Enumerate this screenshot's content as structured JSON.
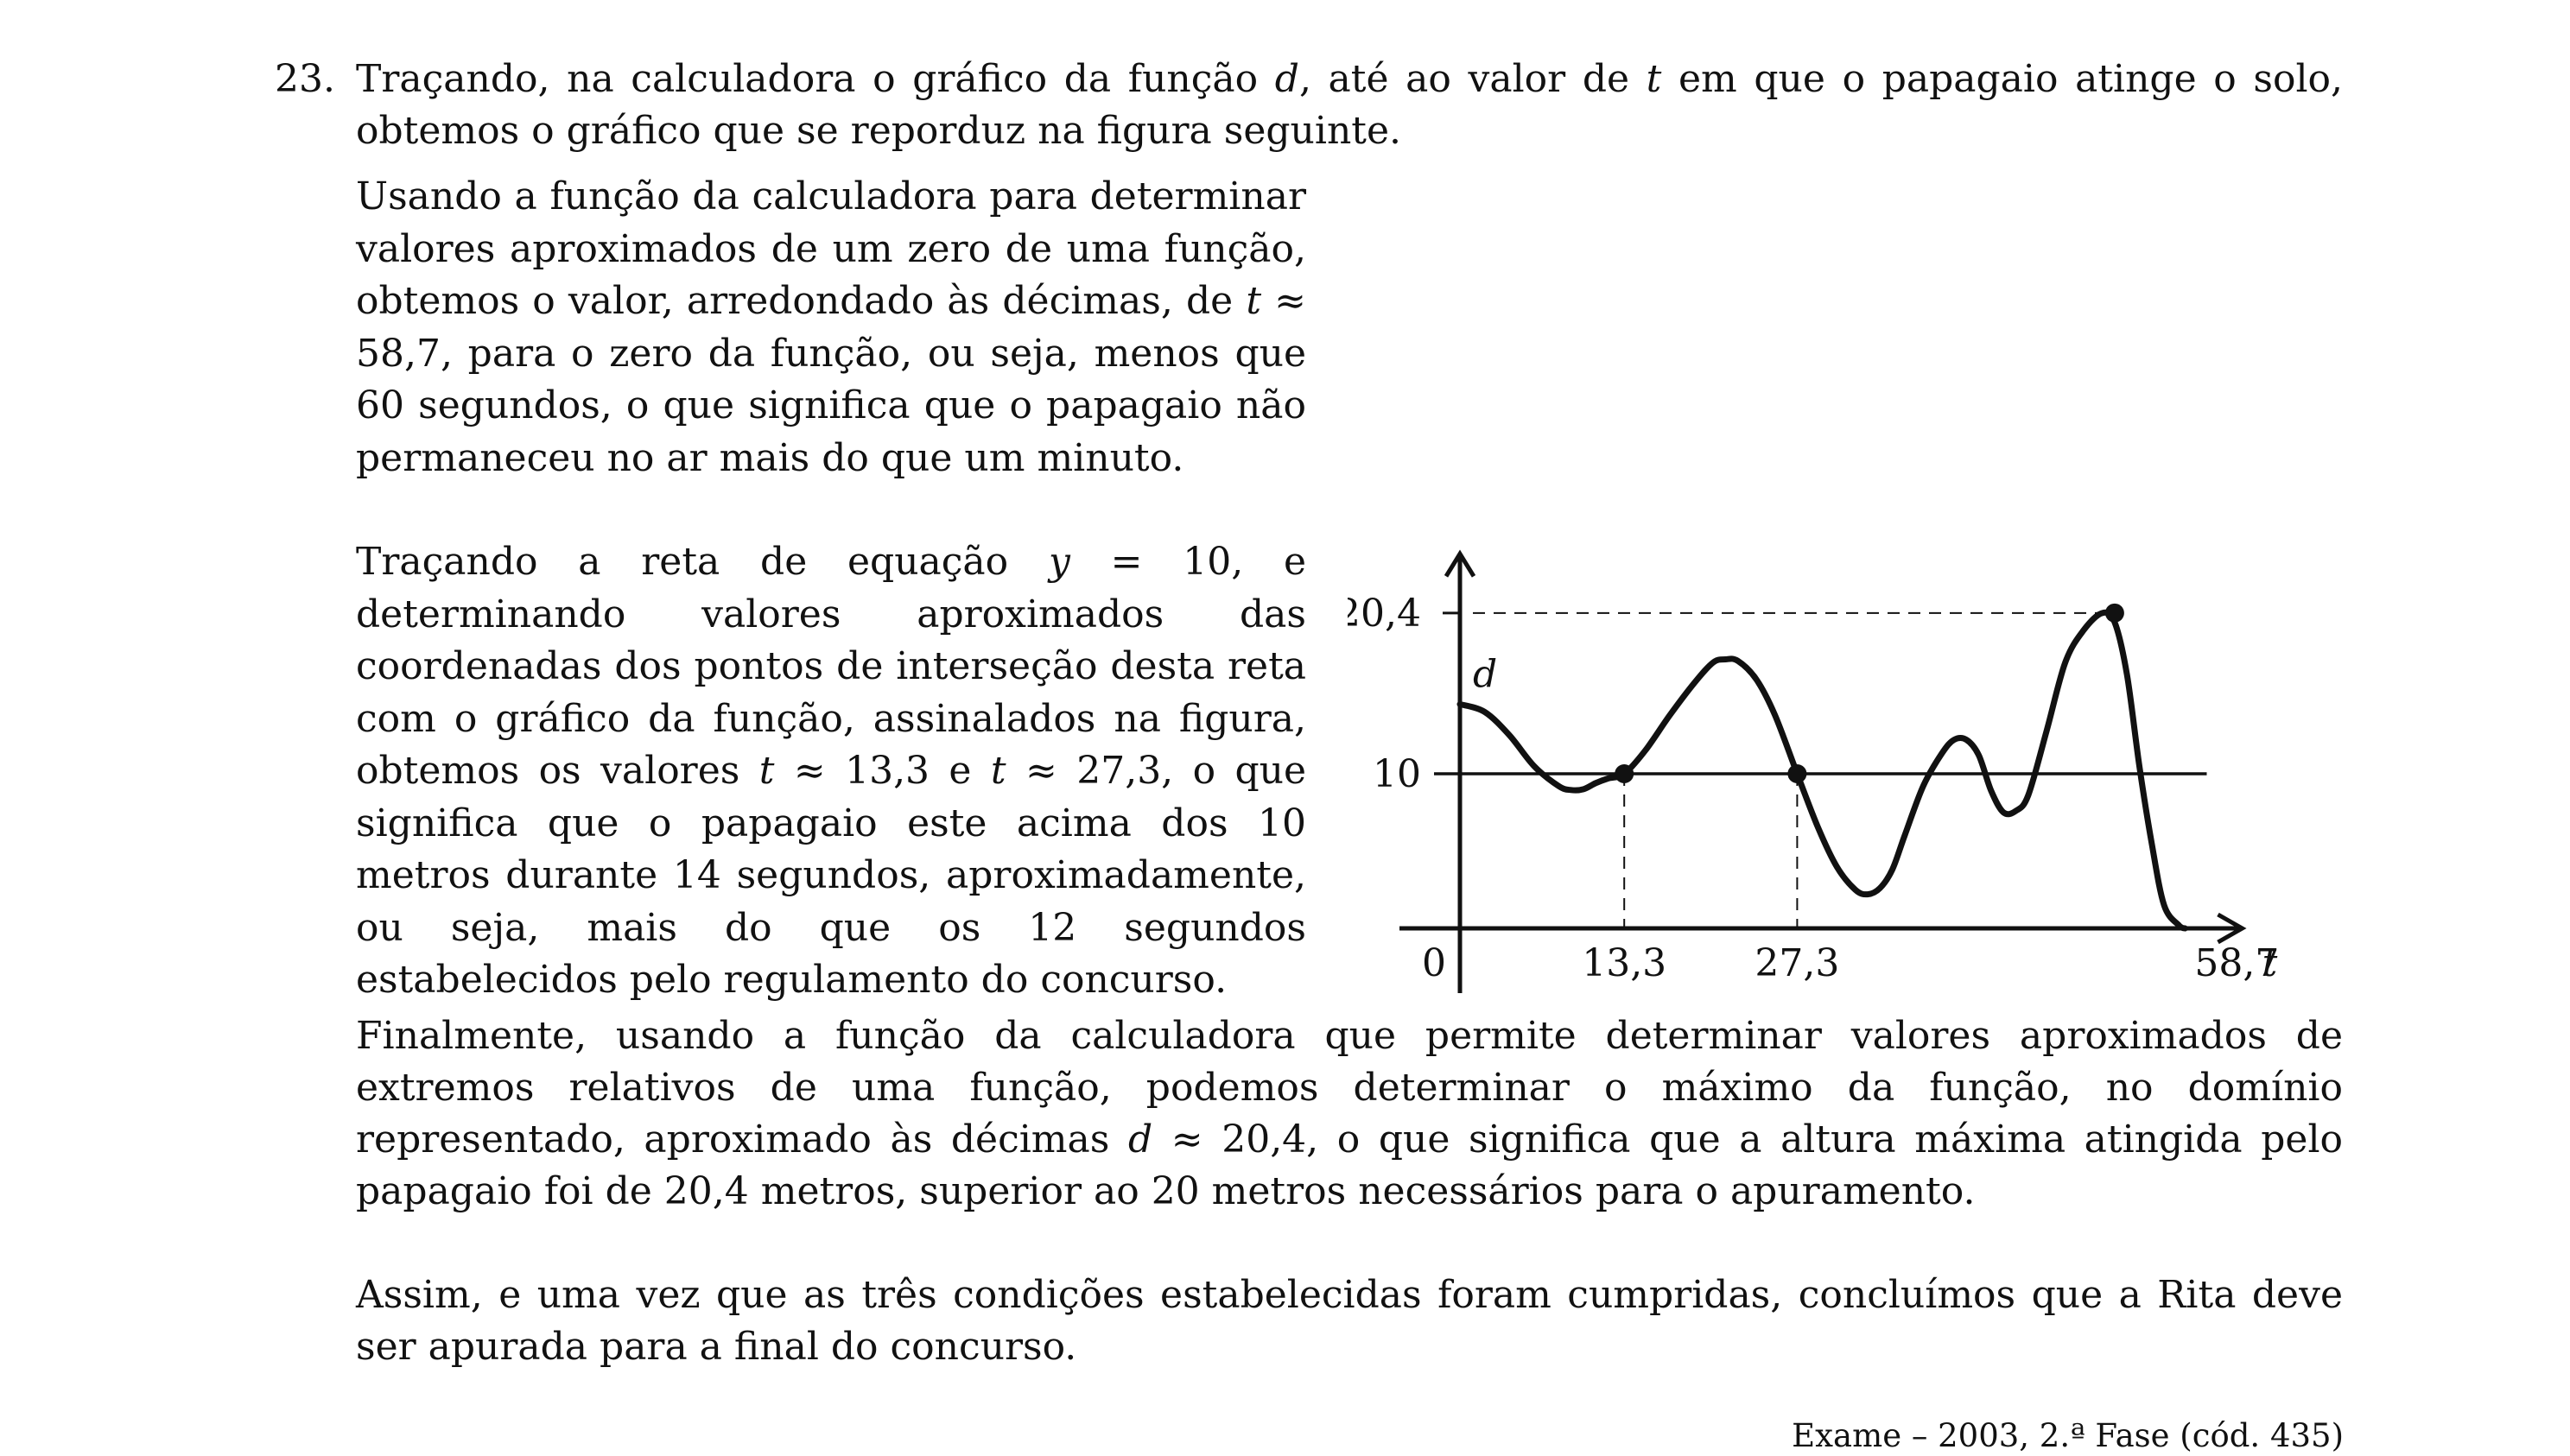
{
  "question": {
    "number": "23.",
    "intro_parts": [
      "Traçando, na calculadora o gráfico da função ",
      "d",
      ", até ao valor de ",
      "t",
      " em que o papagaio atinge o solo, obtemos o gráfico que se reporduz na figura seguinte."
    ]
  },
  "paragraph_zero": [
    "Usando a função da calculadora para determinar valores aproximados de um zero de uma função, obtemos o valor, arredondado às décimas, de ",
    "t",
    " ≈ 58,7, para o zero da função, ou seja, menos que 60 segundos, o que significa que o papagaio não permaneceu no ar mais do que um minuto."
  ],
  "paragraph_intersections": [
    "Traçando a reta de equação ",
    "y",
    " = 10, e determinando valores aproximados das coordenadas dos pontos de interseção desta reta com o gráfico da função, assinalados na figura, obtemos os valores ",
    "t",
    " ≈ 13,3 e ",
    "t",
    " ≈ 27,3, o que significa que o papagaio este acima dos 10 metros durante 14 segundos, aproximadamente, ou seja, mais do que os 12 segundos estabelecidos pelo regulamento do concurso."
  ],
  "paragraph_max": [
    "Finalmente, usando a função da calculadora que permite determinar valores aproximados de extremos relativos de uma função, podemos determinar o máximo da função, no domínio representado, aproximado às décimas ",
    "d",
    " ≈ 20,4, o que significa que a altura máxima atingida pelo papagaio foi de 20,4 metros, superior ao 20 metros necessários para o apuramento."
  ],
  "paragraph_conclusion": "Assim, e uma vez que as três condições estabelecidas foram cumpridas, concluímos que a Rita deve ser apurada para a final do concurso.",
  "footer": "Exame – 2003, 2.ª Fase (cód. 435)",
  "chart_data": {
    "type": "line",
    "curve_label": "d",
    "x_axis_label": "t",
    "origin_label": "0",
    "xlim": [
      0,
      65
    ],
    "ylim": [
      0,
      23
    ],
    "x_ticks": [
      {
        "value": 13.3,
        "label": "13,3"
      },
      {
        "value": 27.3,
        "label": "27,3"
      },
      {
        "value": 58.7,
        "label": "58,7"
      }
    ],
    "y_ticks": [
      {
        "value": 10,
        "label": "10"
      },
      {
        "value": 20.4,
        "label": "20,4"
      }
    ],
    "horizontal_line": {
      "y": 10
    },
    "marked_points": [
      {
        "x": 13.3,
        "y": 10
      },
      {
        "x": 27.3,
        "y": 10
      },
      {
        "x": 53,
        "y": 20.4
      }
    ],
    "series": [
      {
        "x": [
          0,
          2,
          4,
          6,
          8,
          9,
          10,
          11,
          12,
          13.3,
          15,
          17,
          19,
          20.5,
          21.5,
          22.5,
          24,
          25.5,
          27.3,
          29,
          30.5,
          32,
          33,
          34,
          35,
          36,
          37.5,
          39,
          40,
          41,
          42,
          43,
          44,
          45,
          46,
          47.5,
          49,
          50.5,
          52,
          53,
          54,
          55,
          56,
          57,
          58.2,
          58.7
        ],
        "y": [
          14.5,
          14.0,
          12.5,
          10.5,
          9.2,
          8.95,
          9.0,
          9.4,
          9.7,
          10.0,
          11.5,
          13.8,
          15.9,
          17.2,
          17.4,
          17.3,
          16.1,
          13.8,
          10.0,
          6.5,
          4.0,
          2.5,
          2.2,
          2.6,
          3.8,
          6.0,
          9.2,
          11.3,
          12.2,
          12.2,
          11.2,
          8.9,
          7.5,
          7.6,
          8.6,
          12.8,
          17.2,
          19.3,
          20.4,
          19.8,
          16.4,
          10.5,
          5.5,
          1.5,
          0.2,
          0
        ]
      }
    ]
  }
}
